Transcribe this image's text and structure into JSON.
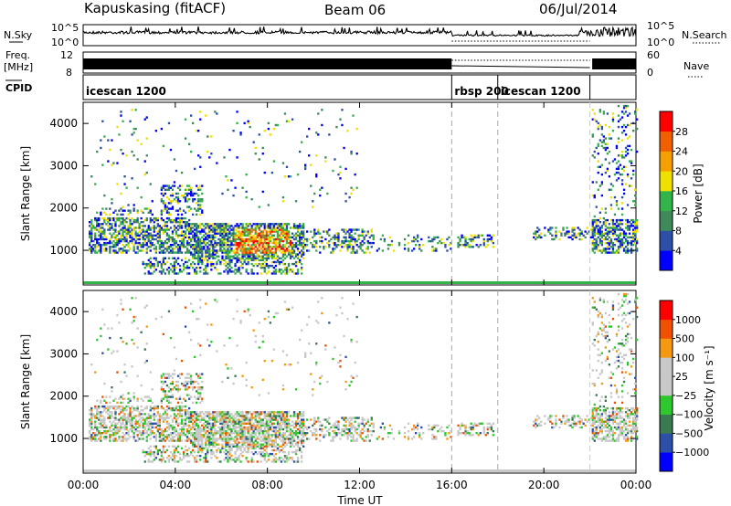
{
  "header": {
    "station": "Kapuskasing (fitACF)",
    "beam": "Beam 06",
    "date": "06/Jul/2014"
  },
  "noise_panel": {
    "left_label": "N.Sky",
    "left_ticks": [
      "10^5",
      "10^0"
    ],
    "right_label": "N.Search",
    "right_ticks": [
      "10^5",
      "10^0"
    ]
  },
  "freq_panel": {
    "left_label_1": "Freq.",
    "left_label_2": "[MHz]",
    "left_ticks": [
      "12",
      "8"
    ],
    "right_label": "Nave",
    "right_ticks": [
      "60",
      "0"
    ]
  },
  "cpid_panel": {
    "label": "CPID",
    "segments": [
      {
        "name": "icescan 1200",
        "start_h": 0,
        "end_h": 16
      },
      {
        "name": "rbsp 200",
        "start_h": 16,
        "end_h": 18
      },
      {
        "name": "icescan 1200",
        "start_h": 18,
        "end_h": 22
      }
    ]
  },
  "colors": {
    "power_scale": [
      "#0000ff",
      "#2c4fa8",
      "#3f8a5a",
      "#32b44a",
      "#f0e000",
      "#f5a000",
      "#f06000",
      "#ff0000"
    ],
    "velocity_scale": [
      "#ff0000",
      "#f05000",
      "#f59a10",
      "#c8c8c8",
      "#c8c8c8",
      "#2ec82e",
      "#3a7a50",
      "#2c4fa8",
      "#0000ff"
    ]
  },
  "chart_data": [
    {
      "type": "heatmap",
      "name": "power",
      "ylabel": "Slant Range [km]",
      "ylim": [
        180,
        4500
      ],
      "yticks": [
        "1000",
        "2000",
        "3000",
        "4000"
      ],
      "xlim": [
        0,
        24
      ],
      "colorbar_label": "Power [dB]",
      "colorbar_ticks": [
        "4",
        "8",
        "12",
        "16",
        "20",
        "24",
        "28"
      ]
    },
    {
      "type": "heatmap",
      "name": "velocity",
      "ylabel": "Slant Range [km]",
      "ylim": [
        180,
        4500
      ],
      "yticks": [
        "1000",
        "2000",
        "3000",
        "4000"
      ],
      "xlim": [
        0,
        24
      ],
      "xticks": [
        "00:00",
        "04:00",
        "08:00",
        "12:00",
        "16:00",
        "20:00",
        "00:00"
      ],
      "xlabel": "Time UT",
      "colorbar_label": "Velocity [m s⁻¹]",
      "colorbar_ticks": [
        "1000",
        "500",
        "100",
        "25",
        "−25",
        "−100",
        "−500",
        "−1000"
      ]
    }
  ]
}
